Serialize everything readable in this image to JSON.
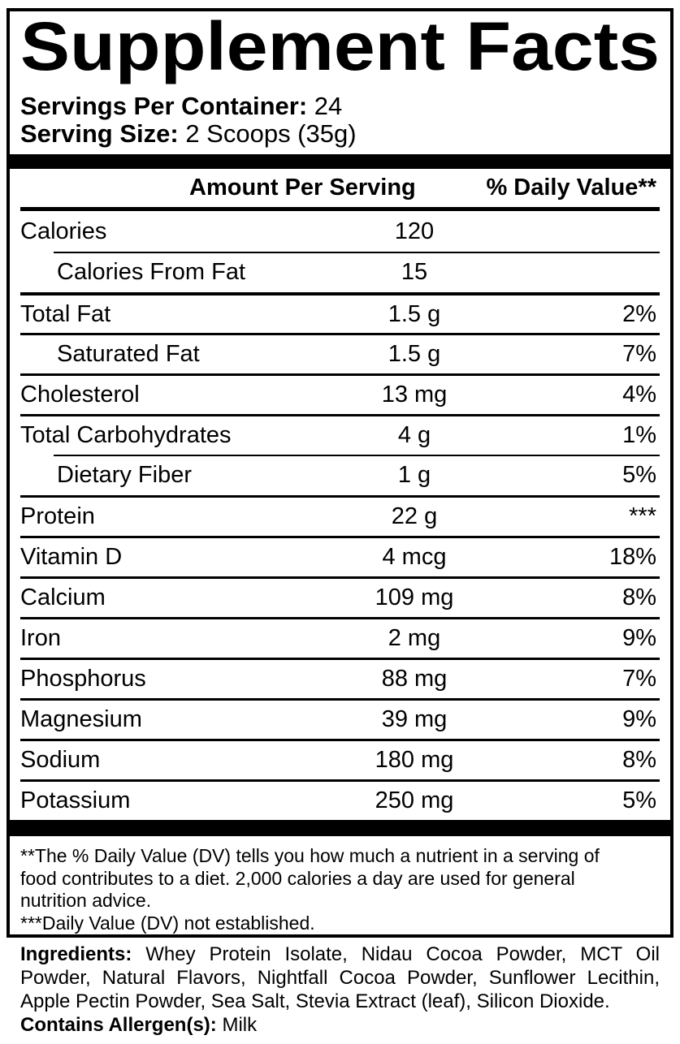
{
  "title": "Supplement Facts",
  "serving_info": {
    "servings_per_container_label": "Servings Per Container:",
    "servings_per_container_value": "24",
    "serving_size_label": "Serving Size:",
    "serving_size_value": "2 Scoops (35g)"
  },
  "table": {
    "amount_header": "Amount Per Serving",
    "dv_header": "% Daily Value**",
    "rows": [
      {
        "name": "Calories",
        "amount": "120",
        "dv": ""
      },
      {
        "name": "Calories From Fat",
        "amount": "15",
        "dv": ""
      },
      {
        "name": "Total Fat",
        "amount": "1.5 g",
        "dv": "2%"
      },
      {
        "name": "Saturated Fat",
        "amount": "1.5 g",
        "dv": "7%"
      },
      {
        "name": "Cholesterol",
        "amount": "13 mg",
        "dv": "4%"
      },
      {
        "name": "Total Carbohydrates",
        "amount": "4 g",
        "dv": "1%"
      },
      {
        "name": "Dietary Fiber",
        "amount": "1 g",
        "dv": "5%"
      },
      {
        "name": "Protein",
        "amount": "22 g",
        "dv": "***"
      },
      {
        "name": "Vitamin D",
        "amount": "4 mcg",
        "dv": "18%"
      },
      {
        "name": "Calcium",
        "amount": "109 mg",
        "dv": "8%"
      },
      {
        "name": "Iron",
        "amount": "2 mg",
        "dv": "9%"
      },
      {
        "name": "Phosphorus",
        "amount": "88 mg",
        "dv": "7%"
      },
      {
        "name": "Magnesium",
        "amount": "39 mg",
        "dv": "9%"
      },
      {
        "name": "Sodium",
        "amount": "180 mg",
        "dv": "8%"
      },
      {
        "name": "Potassium",
        "amount": "250 mg",
        "dv": "5%"
      }
    ]
  },
  "footnotes": {
    "line1": "**The % Daily Value (DV) tells you how much a nutrient in a serving of",
    "line2": "food contributes to a diet. 2,000 calories a day are used for general",
    "line3": "nutrition advice.",
    "line4": "***Daily Value (DV) not established."
  },
  "ingredients": {
    "label": "Ingredients:",
    "line1_rest": "Whey Protein Isolate, Nidau Cocoa Powder, MCT Oil",
    "line2": "Powder, Natural Flavors, Nightfall Cocoa Powder, Sunflower Lecithin,",
    "line3": "Apple Pectin Powder, Sea Salt, Stevia Extract (leaf), Silicon Dioxide.",
    "allergen_label": "Contains Allergen(s):",
    "allergen_value": "Milk"
  },
  "colors": {
    "background": "#ffffff",
    "text": "#000000",
    "rule": "#000000"
  }
}
